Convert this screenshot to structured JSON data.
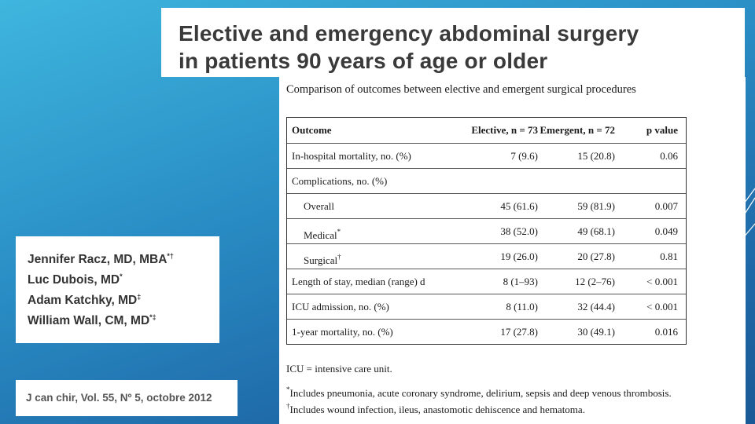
{
  "title": {
    "line1": "Elective and emergency abdominal surgery",
    "line2": "in patients 90 years of age or older"
  },
  "table": {
    "caption": "Comparison of outcomes between elective and emergent surgical procedures",
    "headers": [
      "Outcome",
      "Elective, n = 73",
      "Emergent, n = 72",
      "p value"
    ],
    "rows": [
      {
        "outcome": "In-hospital mortality, no. (%)",
        "elective": "7 (9.6)",
        "emergent": "15 (20.8)",
        "p": "0.06"
      },
      {
        "outcome": "Complications, no. (%)",
        "elective": "",
        "emergent": "",
        "p": ""
      },
      {
        "outcome": "Overall",
        "elective": "45 (61.6)",
        "emergent": "59 (81.9)",
        "p": "0.007"
      },
      {
        "outcome": "Medical",
        "mark": "*",
        "elective": "38 (52.0)",
        "emergent": "49 (68.1)",
        "p": "0.049"
      },
      {
        "outcome": "Surgical",
        "mark": "†",
        "elective": "19 (26.0)",
        "emergent": "20 (27.8)",
        "p": "0.81"
      },
      {
        "outcome": "Length of stay, median (range) d",
        "elective": "8 (1–93)",
        "emergent": "12 (2–76)",
        "p": "< 0.001"
      },
      {
        "outcome": "ICU admission, no. (%)",
        "elective": "8 (11.0)",
        "emergent": "32 (44.4)",
        "p": "< 0.001"
      },
      {
        "outcome": "1-year mortality, no. (%)",
        "elective": "17 (27.8)",
        "emergent": "30 (49.1)",
        "p": "0.016"
      }
    ],
    "notes": {
      "icu": "ICU = intensive care unit.",
      "medical_mark": "*",
      "medical": "Includes pneumonia, acute coronary syndrome, delirium, sepsis and deep venous thrombosis.",
      "surgical_mark": "†",
      "surgical": "Includes wound infection, ileus, anastomotic dehiscence and hematoma."
    }
  },
  "authors": [
    {
      "name": "Jennifer Racz, MD, MBA",
      "marks": "*†"
    },
    {
      "name": "Luc Dubois, MD",
      "marks": "*"
    },
    {
      "name": "Adam Katchky, MD",
      "marks": "‡"
    },
    {
      "name": "William Wall, CM, MD",
      "marks": "*‡"
    }
  ],
  "citation": "J can chir, Vol. 55, Nº 5, octobre 2012"
}
